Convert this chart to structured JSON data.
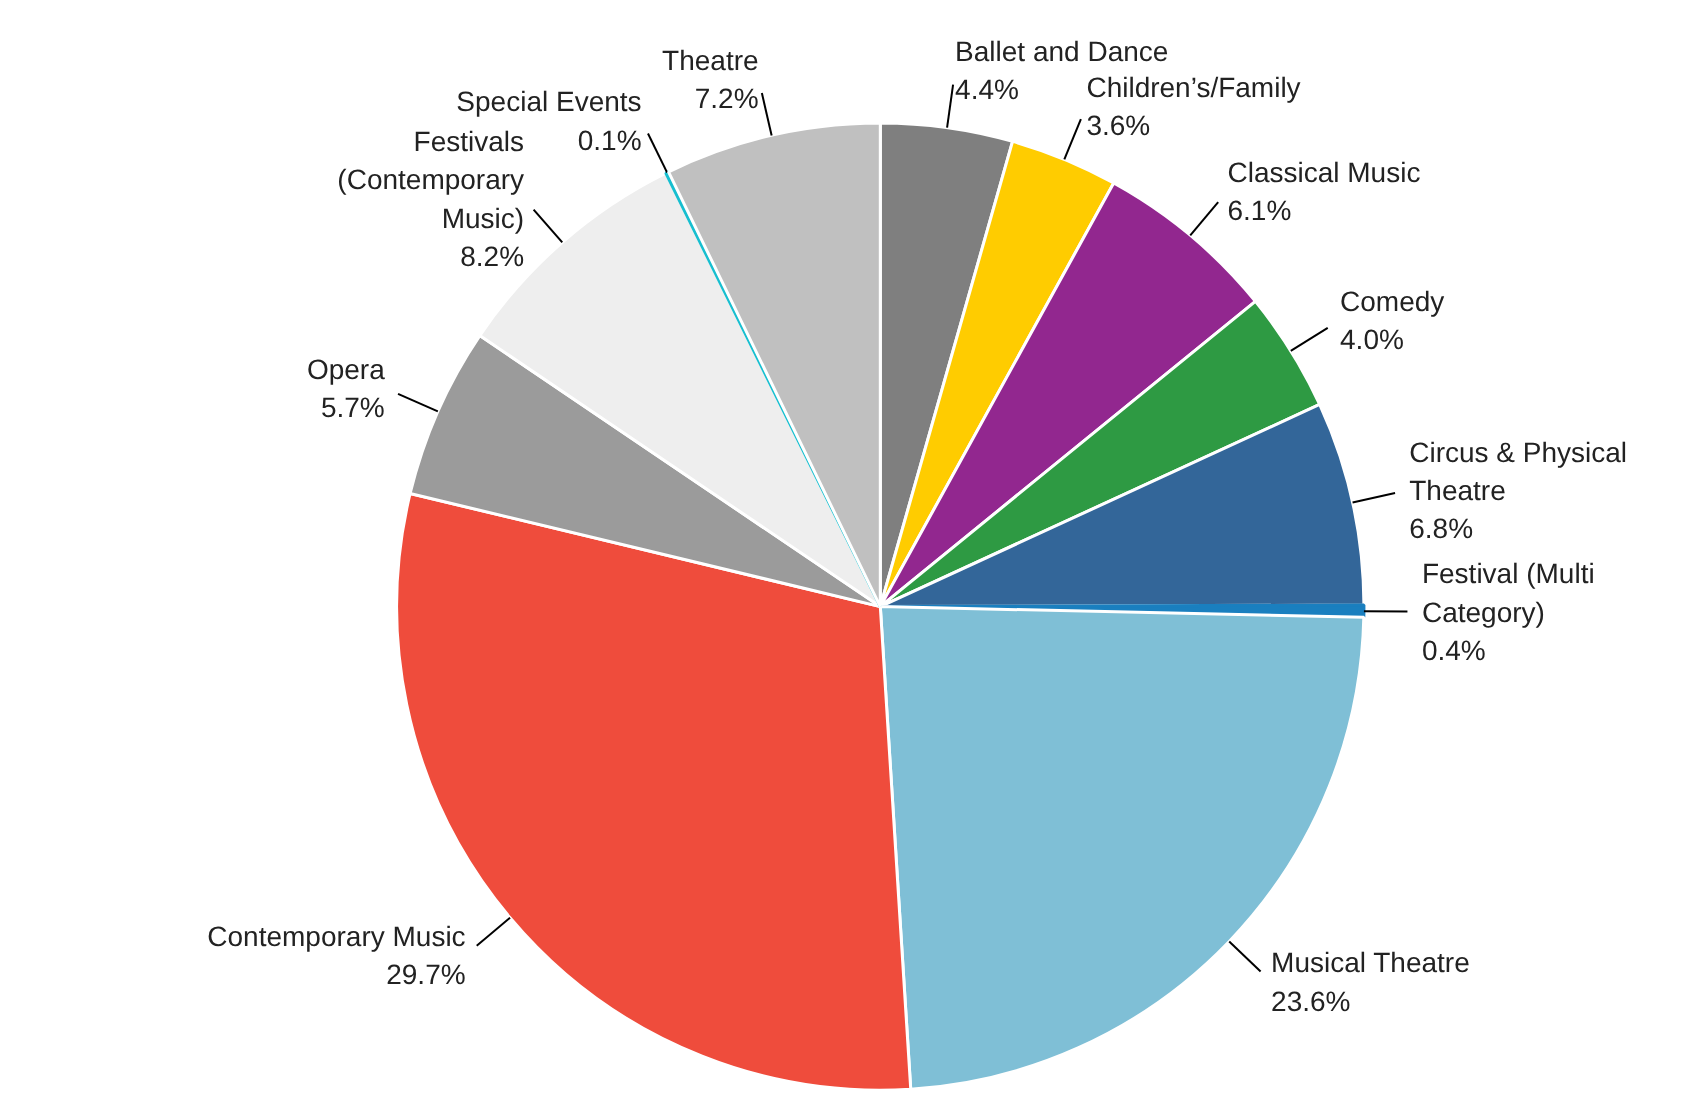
{
  "chart_data": {
    "type": "pie",
    "value_labels": [
      "4.4%",
      "3.6%",
      "6.1%",
      "4.0%",
      "6.8%",
      "0.4%",
      "23.6%",
      "29.7%",
      "5.7%",
      "8.2%",
      "0.1%",
      "7.2%"
    ],
    "categories": [
      "Ballet and Dance",
      "Children’s/Family",
      "Classical Music",
      "Comedy",
      "Circus & Physical Theatre",
      "Festival (Multi Category)",
      "Musical Theatre",
      "Contemporary Music",
      "Opera",
      "Festivals (Contemporary Music)",
      "Special Events",
      "Theatre"
    ],
    "values": [
      4.4,
      3.6,
      6.1,
      4.0,
      6.8,
      0.4,
      23.6,
      29.7,
      5.7,
      8.2,
      0.1,
      7.2
    ],
    "colors": [
      "#7f7f7f",
      "#ffcc00",
      "#92278f",
      "#2e9a43",
      "#336699",
      "#1a7fbf",
      "#7fbfd6",
      "#ef4c3c",
      "#9b9b9b",
      "#eeeeee",
      "#17becf",
      "#c0c0c0"
    ]
  }
}
